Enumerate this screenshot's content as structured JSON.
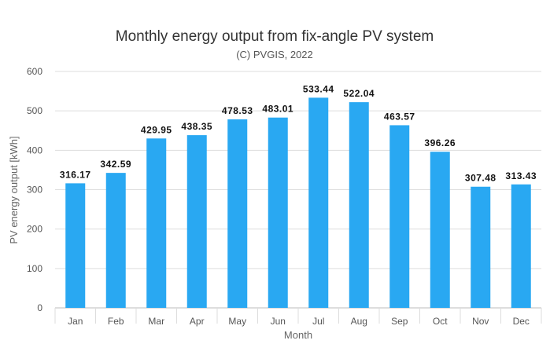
{
  "chart_data": {
    "type": "bar",
    "title": "Monthly energy output from fix-angle PV system",
    "subtitle": "(C) PVGIS, 2022",
    "xlabel": "Month",
    "ylabel": "PV energy output [kWh]",
    "ylim": [
      0,
      600
    ],
    "yticks": [
      0,
      100,
      200,
      300,
      400,
      500,
      600
    ],
    "grid": true,
    "bar_color": "#29a8f2",
    "categories": [
      "Jan",
      "Feb",
      "Mar",
      "Apr",
      "May",
      "Jun",
      "Jul",
      "Aug",
      "Sep",
      "Oct",
      "Nov",
      "Dec"
    ],
    "values": [
      316.17,
      342.59,
      429.95,
      438.35,
      478.53,
      483.01,
      533.44,
      522.04,
      463.57,
      396.26,
      307.48,
      313.43
    ],
    "value_labels": [
      "316.17",
      "342.59",
      "429.95",
      "438.35",
      "478.53",
      "483.01",
      "533.44",
      "522.04",
      "463.57",
      "396.26",
      "307.48",
      "313.43"
    ]
  }
}
